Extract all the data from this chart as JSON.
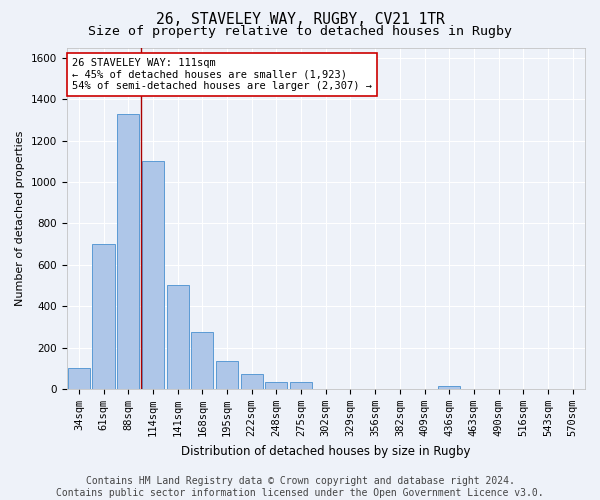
{
  "title_line1": "26, STAVELEY WAY, RUGBY, CV21 1TR",
  "title_line2": "Size of property relative to detached houses in Rugby",
  "xlabel": "Distribution of detached houses by size in Rugby",
  "ylabel": "Number of detached properties",
  "bar_labels": [
    "34sqm",
    "61sqm",
    "88sqm",
    "114sqm",
    "141sqm",
    "168sqm",
    "195sqm",
    "222sqm",
    "248sqm",
    "275sqm",
    "302sqm",
    "329sqm",
    "356sqm",
    "382sqm",
    "409sqm",
    "436sqm",
    "463sqm",
    "490sqm",
    "516sqm",
    "543sqm",
    "570sqm"
  ],
  "bar_values": [
    100,
    700,
    1330,
    1100,
    500,
    275,
    135,
    70,
    35,
    35,
    0,
    0,
    0,
    0,
    0,
    15,
    0,
    0,
    0,
    0,
    0
  ],
  "bar_color": "#aec6e8",
  "bar_edge_color": "#5b9bd5",
  "marker_color": "#aa0000",
  "ylim": [
    0,
    1650
  ],
  "yticks": [
    0,
    200,
    400,
    600,
    800,
    1000,
    1200,
    1400,
    1600
  ],
  "annotation_text": "26 STAVELEY WAY: 111sqm\n← 45% of detached houses are smaller (1,923)\n54% of semi-detached houses are larger (2,307) →",
  "annotation_box_color": "#ffffff",
  "annotation_box_edge": "#cc0000",
  "footer_text": "Contains HM Land Registry data © Crown copyright and database right 2024.\nContains public sector information licensed under the Open Government Licence v3.0.",
  "bg_color": "#eef2f9",
  "grid_color": "#ffffff",
  "title_fontsize": 10.5,
  "subtitle_fontsize": 9.5,
  "axis_fontsize": 8,
  "tick_fontsize": 7.5,
  "footer_fontsize": 7
}
